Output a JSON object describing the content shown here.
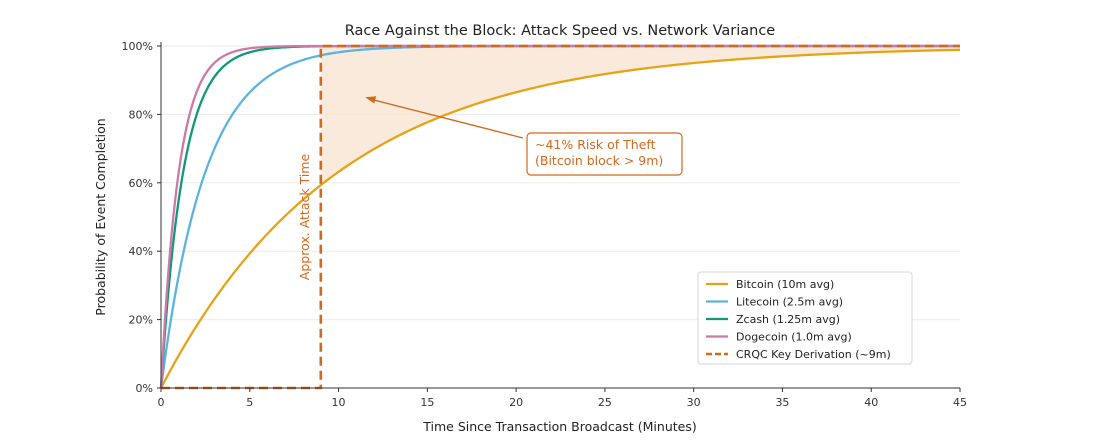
{
  "chart_data": {
    "type": "line",
    "title": "Race Against the Block: Attack Speed vs. Network Variance",
    "xlabel": "Time Since Transaction Broadcast (Minutes)",
    "ylabel": "Probability of Event Completion",
    "xlim": [
      0,
      45
    ],
    "ylim": [
      0,
      100
    ],
    "x_ticks": [
      0,
      5,
      10,
      15,
      20,
      25,
      30,
      35,
      40,
      45
    ],
    "y_ticks": [
      0,
      20,
      40,
      60,
      80,
      100
    ],
    "y_tick_labels": [
      "0%",
      "20%",
      "40%",
      "60%",
      "80%",
      "100%"
    ],
    "grid": "horizontal",
    "legend_position": "lower-right",
    "series": [
      {
        "name": "Bitcoin (10m avg)",
        "color": "#E6A317",
        "mean_minutes": 10,
        "x": [
          0,
          5,
          9,
          15,
          20,
          25,
          30,
          35,
          40,
          45
        ],
        "y": [
          0,
          39.3,
          59.3,
          77.7,
          86.5,
          91.8,
          95.0,
          97.0,
          98.2,
          98.9
        ]
      },
      {
        "name": "Litecoin (2.5m avg)",
        "color": "#5DB3E0",
        "mean_minutes": 2.5,
        "x": [
          0,
          2.5,
          5,
          9,
          15,
          20
        ],
        "y": [
          0,
          63.2,
          86.5,
          97.3,
          99.8,
          100
        ]
      },
      {
        "name": "Zcash (1.25m avg)",
        "color": "#12977A",
        "mean_minutes": 1.25,
        "x": [
          0,
          1.25,
          2.5,
          5,
          9
        ],
        "y": [
          0,
          63.2,
          86.5,
          98.2,
          99.9
        ]
      },
      {
        "name": "Dogecoin (1.0m avg)",
        "color": "#CC7AA8",
        "mean_minutes": 1.0,
        "x": [
          0,
          1,
          2,
          5,
          9
        ],
        "y": [
          0,
          63.2,
          86.5,
          99.3,
          100
        ]
      },
      {
        "name": "CRQC Key Derivation (~9m)",
        "color": "#D2691E",
        "style": "dashed-step",
        "step_x": 9,
        "x": [
          0,
          9,
          9,
          45
        ],
        "y": [
          0,
          0,
          100,
          100
        ]
      }
    ],
    "shaded_region": {
      "x_from": 9,
      "x_to": 45,
      "between": "Bitcoin (10m avg) and 100%",
      "color": "#F7E3CF"
    },
    "annotations": [
      {
        "text": "Approx. Attack Time",
        "at_x": 9,
        "rotation": "vertical",
        "color": "#D2691E"
      },
      {
        "lines": [
          "~41% Risk of Theft",
          "(Bitcoin block > 9m)"
        ],
        "color": "#D2691E",
        "arrow_to": {
          "x": 11.5,
          "y": 85
        }
      }
    ]
  }
}
